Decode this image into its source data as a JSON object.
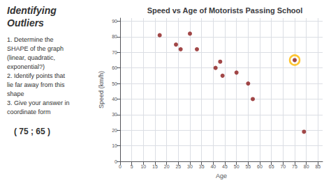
{
  "chart_data": {
    "type": "scatter",
    "title": "Speed vs Age of Motorists Passing School",
    "xlabel": "Age",
    "ylabel": "Speed (km/h)",
    "x": [
      17,
      24,
      26,
      30,
      33,
      41,
      43,
      44,
      50,
      55,
      57,
      75,
      79
    ],
    "values": [
      81,
      75,
      72,
      82,
      72,
      60,
      64,
      55,
      57,
      50,
      40,
      65,
      19
    ],
    "color": "#8B1A1A",
    "xlim": [
      0,
      87
    ],
    "ylim": [
      0,
      92
    ],
    "xticks": [
      0,
      5,
      10,
      15,
      20,
      25,
      30,
      35,
      40,
      45,
      50,
      55,
      60,
      65,
      70,
      75,
      80,
      85
    ],
    "yticks": [
      0,
      10,
      20,
      30,
      40,
      50,
      60,
      70,
      80,
      90
    ],
    "grid": true,
    "outlier": {
      "x": 75,
      "y": 65,
      "color": "#FFB800"
    },
    "sidebar_title": [
      "Identifying",
      "Outliers"
    ],
    "annotations": [
      "1. Determine the",
      "SHAPE of the graph",
      "(linear, quadratic,",
      "exponential?)",
      "2. Identify points that",
      "lie far away from this",
      "shape",
      "3. Give your answer in",
      "coordinate form"
    ],
    "answer": "( 75 ; 65 )"
  }
}
